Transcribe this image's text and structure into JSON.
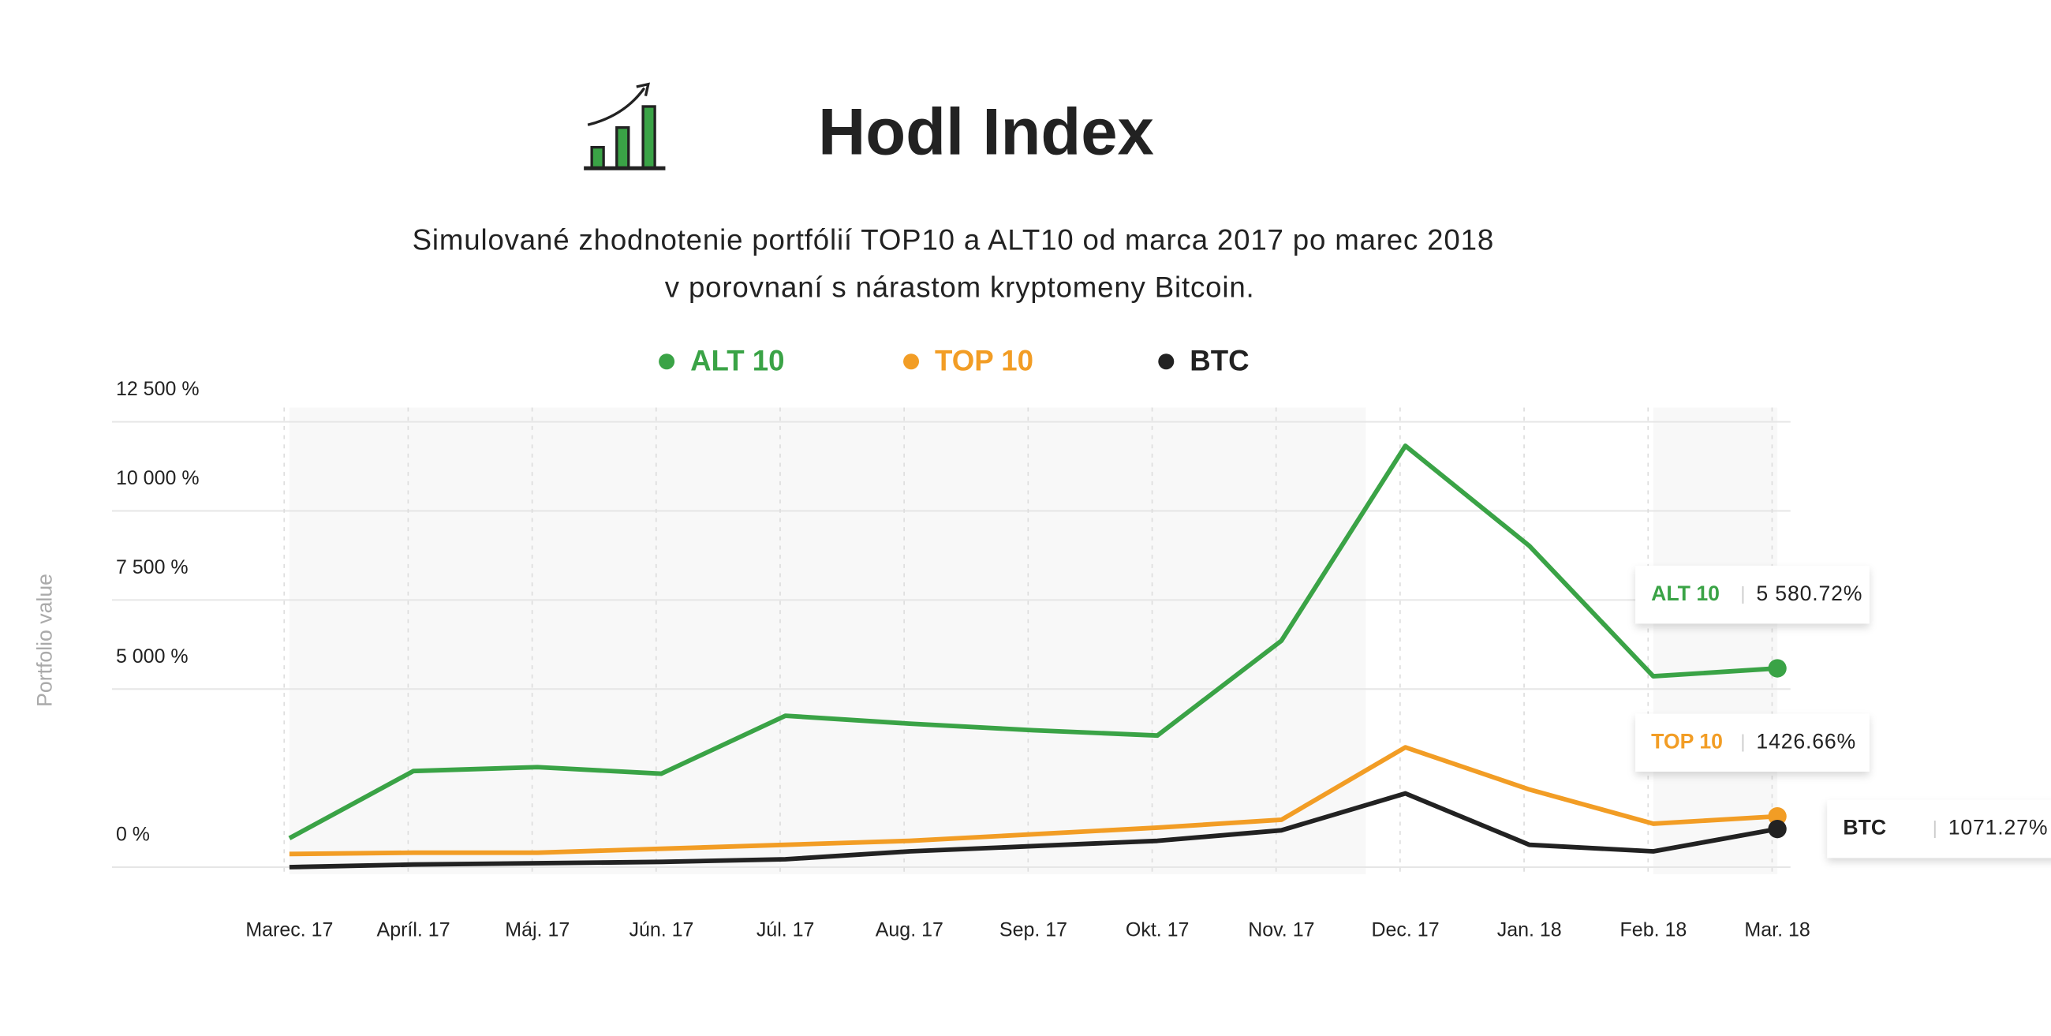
{
  "chart_data": {
    "type": "line",
    "title": "Hodl Index",
    "subtitle": [
      "Simulované zhodnotenie portfólií TOP10 a ALT10 od marca 2017 po marec 2018",
      "v porovnaní s nárastom kryptomeny  Bitcoin."
    ],
    "y_axis_label": "Portfolio value",
    "categories": [
      "Marec. 17",
      "Apríl. 17",
      "Máj. 17",
      "Jún. 17",
      "Júl. 17",
      "Aug. 17",
      "Sep. 17",
      "Okt. 17",
      "Nov. 17",
      "Dec. 17",
      "Jan. 18",
      "Feb. 18",
      "Mar. 18"
    ],
    "series": [
      {
        "name": "ALT 10",
        "color": "#3aa346",
        "values": [
          813,
          2698,
          2808,
          2624,
          4250,
          4028,
          3843,
          3695,
          6356,
          11826,
          9017,
          5358,
          5580.72
        ],
        "value_labels": [
          null,
          null,
          null,
          null,
          null,
          null,
          null,
          null,
          null,
          null,
          null,
          null,
          "5 580.72%"
        ]
      },
      {
        "name": "TOP 10",
        "color": "#f29d25",
        "values": [
          370,
          406,
          406,
          517,
          628,
          739,
          924,
          1109,
          1330,
          3363,
          2180,
          1220,
          1426.66
        ],
        "value_labels": [
          null,
          null,
          null,
          null,
          null,
          null,
          null,
          null,
          null,
          null,
          null,
          null,
          "1426.66%"
        ]
      },
      {
        "name": "BTC",
        "color": "#222222",
        "values": [
          0,
          74,
          111,
          148,
          222,
          443,
          591,
          739,
          1035,
          2069,
          628,
          443,
          1071.27
        ],
        "value_labels": [
          null,
          null,
          null,
          null,
          null,
          null,
          null,
          null,
          null,
          null,
          null,
          null,
          "1071.27%"
        ]
      }
    ],
    "ylim": [
      -200,
      12900
    ],
    "yticks": [
      {
        "value": 0,
        "label": "0 %"
      },
      {
        "value": 5000,
        "label": "5 000 %"
      },
      {
        "value": 7500,
        "label": "7 500 %"
      },
      {
        "value": 10000,
        "label": "10 000 %"
      },
      {
        "value": 12500,
        "label": "12 500 %"
      }
    ],
    "grid": true
  }
}
